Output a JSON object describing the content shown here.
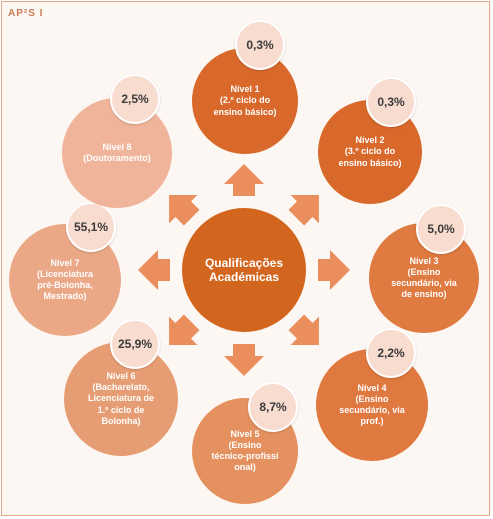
{
  "logo": "AP²S I",
  "center": {
    "label": "Qualificações\nAcadémicas"
  },
  "nodes": [
    {
      "id": "nivel-1",
      "label": "Nível 1\n(2.º ciclo do\nensino básico)",
      "percent": "0,3%",
      "color": "#d9692a"
    },
    {
      "id": "nivel-2",
      "label": "Nível 2\n(3.º ciclo do\nensino básico)",
      "percent": "0,3%",
      "color": "#d9692a"
    },
    {
      "id": "nivel-3",
      "label": "Nível 3\n(Ensino\nsecundário, via\nde ensino)",
      "percent": "5,0%",
      "color": "#df7a41"
    },
    {
      "id": "nivel-4",
      "label": "Nível 4\n(Ensino\nsecundário, via\nprof.)",
      "percent": "2,2%",
      "color": "#e0793f"
    },
    {
      "id": "nivel-5",
      "label": "Nível 5\n(Ensino\ntécnico-profissi\nonal)",
      "percent": "8,7%",
      "color": "#e4915f"
    },
    {
      "id": "nivel-6",
      "label": "Nível 6\n(Bacharelato,\nLicenciatura de\n1.º ciclo de\nBolonha)",
      "percent": "25,9%",
      "color": "#e79d73"
    },
    {
      "id": "nivel-7",
      "label": "Nível 7\n(Licenciatura\npré-Bolonha,\nMestrado)",
      "percent": "55,1%",
      "color": "#eaa887"
    },
    {
      "id": "nivel-8",
      "label": "Nível 8\n(Doutoramento)",
      "percent": "2,5%",
      "color": "#efb49a"
    }
  ],
  "colors": {
    "center": "#d2661f",
    "arrow": "#e98e5c",
    "badge": "#f9dcd0"
  }
}
